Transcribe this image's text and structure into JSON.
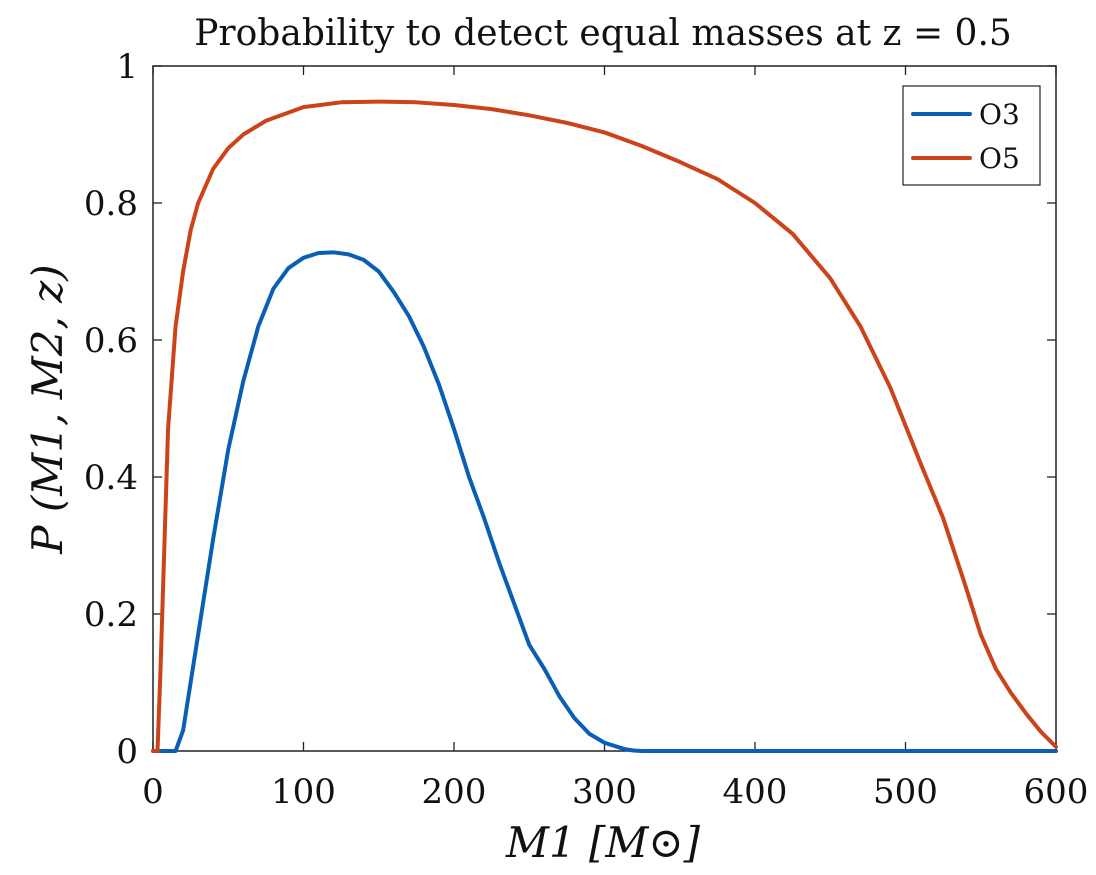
{
  "chart_data": {
    "type": "line",
    "title": "Probability to detect equal masses at z = 0.5",
    "xlabel": "M1 [M⊙]",
    "ylabel": "P (M1, M2, z)",
    "xlim": [
      0,
      600
    ],
    "ylim": [
      0,
      1
    ],
    "xticks": [
      0,
      100,
      200,
      300,
      400,
      500,
      600
    ],
    "yticks": [
      0,
      0.2,
      0.4,
      0.6,
      0.8,
      1
    ],
    "xtick_labels": [
      "0",
      "100",
      "200",
      "300",
      "400",
      "500",
      "600"
    ],
    "ytick_labels": [
      "0",
      "0.2",
      "0.4",
      "0.6",
      "0.8",
      "1"
    ],
    "legend_position": "top-right",
    "series": [
      {
        "name": "O3",
        "color": "#0a5fb4",
        "x": [
          0,
          15,
          20,
          30,
          40,
          50,
          60,
          70,
          80,
          90,
          100,
          110,
          120,
          130,
          140,
          150,
          160,
          170,
          180,
          190,
          200,
          210,
          220,
          230,
          240,
          250,
          260,
          270,
          280,
          290,
          300,
          310,
          315,
          320,
          325,
          330,
          340,
          400,
          500,
          600
        ],
        "y": [
          0,
          0,
          0.03,
          0.17,
          0.31,
          0.44,
          0.54,
          0.62,
          0.675,
          0.705,
          0.72,
          0.727,
          0.728,
          0.725,
          0.717,
          0.7,
          0.67,
          0.635,
          0.59,
          0.535,
          0.47,
          0.4,
          0.34,
          0.275,
          0.215,
          0.155,
          0.12,
          0.08,
          0.048,
          0.025,
          0.012,
          0.005,
          0.002,
          0.0005,
          0,
          0,
          0,
          0,
          0,
          0
        ]
      },
      {
        "name": "O5",
        "color": "#cc4319",
        "x": [
          0,
          3,
          5,
          8,
          10,
          15,
          20,
          25,
          30,
          40,
          50,
          60,
          75,
          100,
          125,
          150,
          175,
          200,
          225,
          250,
          275,
          300,
          325,
          350,
          375,
          400,
          425,
          450,
          470,
          490,
          510,
          525,
          540,
          550,
          560,
          570,
          580,
          590,
          600
        ],
        "y": [
          0,
          0,
          0.12,
          0.33,
          0.47,
          0.62,
          0.7,
          0.76,
          0.8,
          0.85,
          0.88,
          0.9,
          0.92,
          0.94,
          0.947,
          0.948,
          0.947,
          0.943,
          0.937,
          0.928,
          0.917,
          0.903,
          0.883,
          0.86,
          0.835,
          0.8,
          0.755,
          0.69,
          0.62,
          0.53,
          0.42,
          0.34,
          0.24,
          0.17,
          0.12,
          0.085,
          0.055,
          0.028,
          0.006
        ]
      }
    ]
  }
}
